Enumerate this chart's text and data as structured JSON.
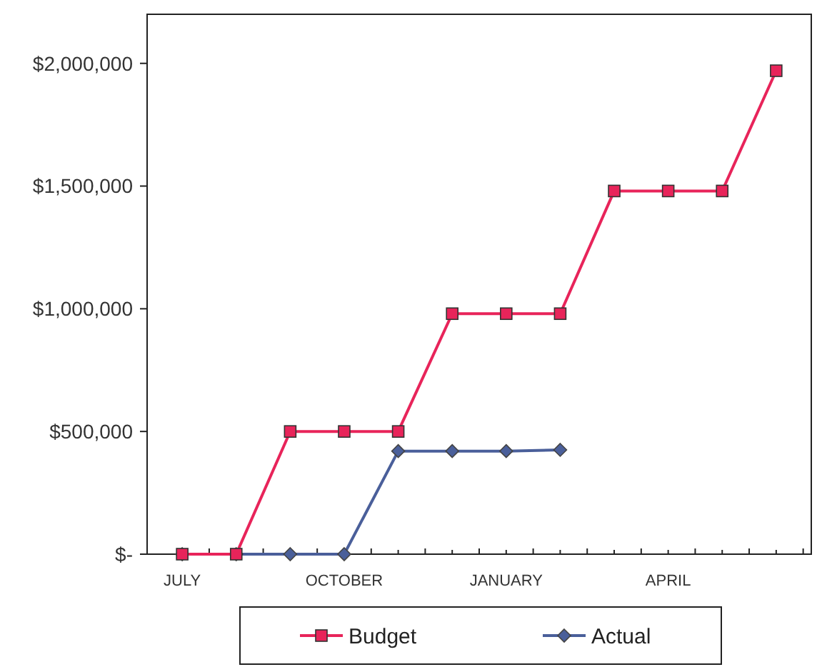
{
  "chart_data": {
    "type": "line",
    "categories": [
      "JULY",
      null,
      null,
      "OCTOBER",
      null,
      null,
      "JANUARY",
      null,
      null,
      "APRIL",
      null,
      null
    ],
    "series": [
      {
        "name": "Budget",
        "color": "#e8245a",
        "marker": "square",
        "values": [
          0,
          0,
          500000,
          500000,
          500000,
          980000,
          980000,
          980000,
          1480000,
          1480000,
          1480000,
          1970000
        ]
      },
      {
        "name": "Actual",
        "color": "#4a5f9a",
        "marker": "diamond",
        "values": [
          0,
          0,
          0,
          0,
          420000,
          420000,
          420000,
          425000,
          null,
          null,
          null,
          null
        ]
      }
    ],
    "ylim": [
      0,
      2200000
    ],
    "yticks": [
      {
        "value": 0,
        "label": "$-"
      },
      {
        "value": 500000,
        "label": "$500,000"
      },
      {
        "value": 1000000,
        "label": "$1,000,000"
      },
      {
        "value": 1500000,
        "label": "$1,500,000"
      },
      {
        "value": 2000000,
        "label": "$2,000,000"
      }
    ],
    "grid": false,
    "legend": "bottom",
    "line_style": "solid"
  }
}
